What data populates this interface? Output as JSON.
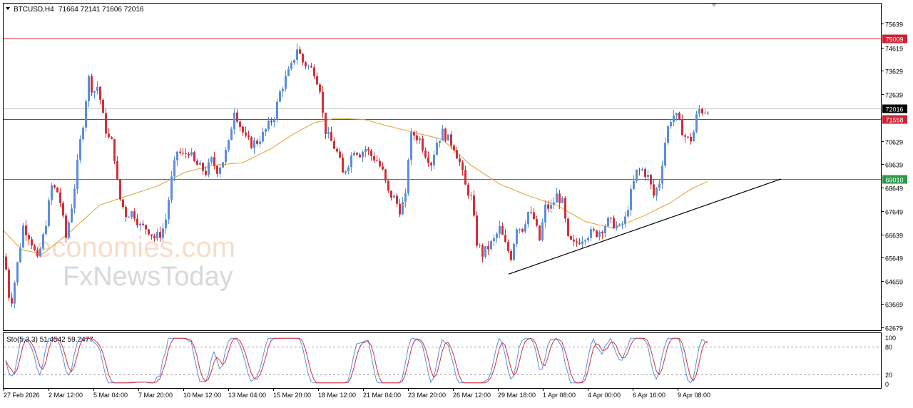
{
  "chart_data": [
    {
      "type": "candlestick",
      "symbol_header": "BTCUSD,H4",
      "ohlc_header": "71664 72141 71606 72016",
      "y_ticks": [
        "75639",
        "74619",
        "73629",
        "72639",
        "71629",
        "70629",
        "69639",
        "68649",
        "67649",
        "66639",
        "65649",
        "64659",
        "63669",
        "62679"
      ],
      "y_tick_values": [
        75639,
        74619,
        73629,
        72639,
        71629,
        70629,
        69639,
        68649,
        67649,
        66639,
        65649,
        64659,
        63669,
        62679
      ],
      "ylim": [
        62679,
        75639
      ],
      "x_ticks": [
        "27 Feb 2026",
        "2 Mar 12:00",
        "5 Mar 04:00",
        "7 Mar 20:00",
        "10 Mar 12:00",
        "13 Mar 04:00",
        "15 Mar 20:00",
        "18 Mar 12:00",
        "21 Mar 04:00",
        "23 Mar 20:00",
        "26 Mar 12:00",
        "29 Mar 18:00",
        "1 Apr 08:00",
        "4 Apr 00:00",
        "6 Apr 16:00",
        "9 Apr 08:00"
      ],
      "levels": [
        {
          "label": "75009",
          "value": 75009,
          "color": "#cc2233"
        },
        {
          "label": "72016",
          "value": 72016,
          "color": "#000000",
          "style": "current-price"
        },
        {
          "label": "71558",
          "value": 71558,
          "color": "#cc2233"
        },
        {
          "label": "69010",
          "value": 69010,
          "color": "#2a9a4a"
        }
      ],
      "trendline": {
        "from": [
          713,
          64950
        ],
        "to": [
          1095,
          69010
        ],
        "color": "#000000"
      },
      "moving_average_color": "#e0a030",
      "up_color": "#5b8edb",
      "down_color": "#d0303a",
      "close_anchors": [
        [
          6,
          65700
        ],
        [
          14,
          63500
        ],
        [
          22,
          65000
        ],
        [
          32,
          67000
        ],
        [
          42,
          66500
        ],
        [
          52,
          65500
        ],
        [
          62,
          66800
        ],
        [
          72,
          68700
        ],
        [
          82,
          68400
        ],
        [
          92,
          66500
        ],
        [
          102,
          68200
        ],
        [
          112,
          70600
        ],
        [
          118,
          71800
        ],
        [
          123,
          73400
        ],
        [
          130,
          72700
        ],
        [
          137,
          73000
        ],
        [
          143,
          71800
        ],
        [
          150,
          70800
        ],
        [
          158,
          70500
        ],
        [
          166,
          68300
        ],
        [
          176,
          67500
        ],
        [
          186,
          67600
        ],
        [
          196,
          67000
        ],
        [
          206,
          66900
        ],
        [
          216,
          66500
        ],
        [
          226,
          66700
        ],
        [
          232,
          67300
        ],
        [
          240,
          69000
        ],
        [
          248,
          70200
        ],
        [
          256,
          70000
        ],
        [
          264,
          70200
        ],
        [
          272,
          69700
        ],
        [
          280,
          69500
        ],
        [
          288,
          69300
        ],
        [
          296,
          69800
        ],
        [
          304,
          69400
        ],
        [
          312,
          69800
        ],
        [
          320,
          70500
        ],
        [
          328,
          72000
        ],
        [
          336,
          71300
        ],
        [
          344,
          70700
        ],
        [
          352,
          70500
        ],
        [
          360,
          70600
        ],
        [
          368,
          70900
        ],
        [
          376,
          71300
        ],
        [
          384,
          71700
        ],
        [
          392,
          72700
        ],
        [
          400,
          73300
        ],
        [
          408,
          73800
        ],
        [
          416,
          74600
        ],
        [
          424,
          74000
        ],
        [
          432,
          73800
        ],
        [
          440,
          73600
        ],
        [
          448,
          72900
        ],
        [
          454,
          71200
        ],
        [
          460,
          70800
        ],
        [
          466,
          70500
        ],
        [
          474,
          70000
        ],
        [
          480,
          69200
        ],
        [
          488,
          69700
        ],
        [
          496,
          70300
        ],
        [
          504,
          70100
        ],
        [
          512,
          70300
        ],
        [
          520,
          70000
        ],
        [
          528,
          69800
        ],
        [
          536,
          69300
        ],
        [
          544,
          68400
        ],
        [
          552,
          68200
        ],
        [
          560,
          67700
        ],
        [
          568,
          68200
        ],
        [
          574,
          70800
        ],
        [
          580,
          70900
        ],
        [
          588,
          70700
        ],
        [
          596,
          70100
        ],
        [
          604,
          69700
        ],
        [
          612,
          70600
        ],
        [
          620,
          71000
        ],
        [
          628,
          70700
        ],
        [
          636,
          70400
        ],
        [
          644,
          69700
        ],
        [
          652,
          68700
        ],
        [
          660,
          68200
        ],
        [
          668,
          66300
        ],
        [
          676,
          65800
        ],
        [
          684,
          66100
        ],
        [
          692,
          66400
        ],
        [
          700,
          66900
        ],
        [
          708,
          66200
        ],
        [
          716,
          65700
        ],
        [
          724,
          67000
        ],
        [
          732,
          66900
        ],
        [
          740,
          67600
        ],
        [
          748,
          67300
        ],
        [
          756,
          66400
        ],
        [
          764,
          67800
        ],
        [
          772,
          67800
        ],
        [
          780,
          68300
        ],
        [
          788,
          68000
        ],
        [
          796,
          66400
        ],
        [
          804,
          66200
        ],
        [
          812,
          66400
        ],
        [
          820,
          66600
        ],
        [
          828,
          66700
        ],
        [
          836,
          66700
        ],
        [
          844,
          66900
        ],
        [
          852,
          67200
        ],
        [
          860,
          67100
        ],
        [
          868,
          66900
        ],
        [
          876,
          67300
        ],
        [
          884,
          68400
        ],
        [
          892,
          69300
        ],
        [
          900,
          69400
        ],
        [
          908,
          69100
        ],
        [
          916,
          68300
        ],
        [
          924,
          68900
        ],
        [
          932,
          70600
        ],
        [
          938,
          71500
        ],
        [
          946,
          71800
        ],
        [
          954,
          71200
        ],
        [
          962,
          70700
        ],
        [
          970,
          70700
        ],
        [
          978,
          72000
        ],
        [
          986,
          71900
        ],
        [
          992,
          72016
        ]
      ],
      "ma_anchors": [
        [
          5,
          66800
        ],
        [
          30,
          66000
        ],
        [
          60,
          65800
        ],
        [
          100,
          66800
        ],
        [
          140,
          67900
        ],
        [
          180,
          68300
        ],
        [
          220,
          68700
        ],
        [
          260,
          69300
        ],
        [
          300,
          69600
        ],
        [
          340,
          69700
        ],
        [
          380,
          70300
        ],
        [
          410,
          70900
        ],
        [
          440,
          71400
        ],
        [
          470,
          71600
        ],
        [
          510,
          71550
        ],
        [
          540,
          71300
        ],
        [
          580,
          71000
        ],
        [
          620,
          70700
        ],
        [
          660,
          69600
        ],
        [
          700,
          68800
        ],
        [
          740,
          68300
        ],
        [
          780,
          67900
        ],
        [
          820,
          67200
        ],
        [
          860,
          66900
        ],
        [
          900,
          67400
        ],
        [
          940,
          68000
        ],
        [
          970,
          68600
        ],
        [
          992,
          68900
        ]
      ]
    },
    {
      "type": "stochastic",
      "indicator_header": "Sto(5,3,3) 51.4542 59.2477",
      "y_ticks": [
        "100",
        "80",
        "20",
        "0"
      ],
      "ylim": [
        0,
        100
      ],
      "main_color": "#5b8edb",
      "signal_color": "#d0303a",
      "levels": [
        80,
        20
      ]
    }
  ],
  "watermarks": {
    "brand": "economies.com",
    "brand2": "FxNewsToday"
  }
}
